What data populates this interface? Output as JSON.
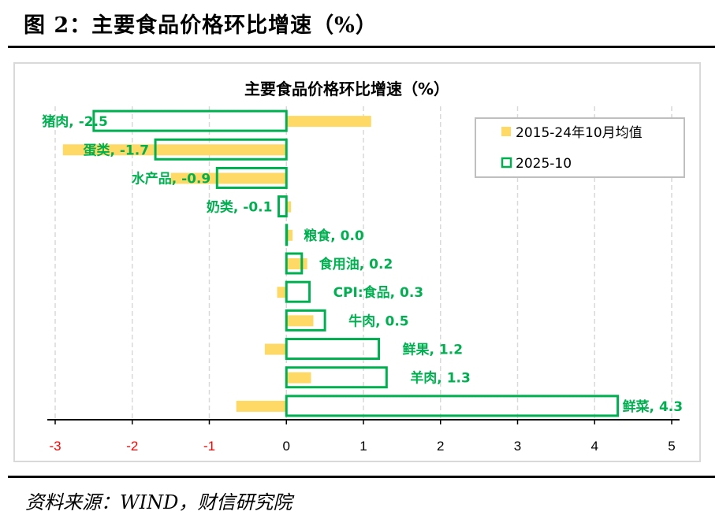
{
  "figure_title": "图 2：主要食品价格环比增速（%）",
  "source": "资料来源：WIND，财信研究院",
  "colors": {
    "avg": "#FFD966",
    "current": "#00B050",
    "label": "#00B050",
    "negative_tick": "#FF0000"
  },
  "chart_data": {
    "type": "bar",
    "orientation": "horizontal",
    "title": "主要食品价格环比增速（%）",
    "categories": [
      "猪肉",
      "蛋类",
      "水产品",
      "奶类",
      "粮食",
      "食用油",
      "CPI:食品",
      "牛肉",
      "鲜果",
      "羊肉",
      "鲜菜"
    ],
    "series": [
      {
        "name": "2015-24年10月均值",
        "style": "filled",
        "values": [
          1.1,
          -2.9,
          -1.5,
          0.06,
          0.08,
          0.27,
          -0.12,
          0.35,
          -0.28,
          0.32,
          -0.65
        ]
      },
      {
        "name": "2025-10",
        "style": "outline",
        "values": [
          -2.5,
          -1.7,
          -0.9,
          -0.1,
          0.0,
          0.2,
          0.3,
          0.5,
          1.2,
          1.3,
          4.3
        ]
      }
    ],
    "data_labels": [
      "猪肉, -2.5",
      "蛋类, -1.7",
      "水产品, -0.9",
      "奶类, -0.1",
      "粮食, 0.0",
      "食用油, 0.2",
      "CPI:食品, 0.3",
      "牛肉, 0.5",
      "鲜果, 1.2",
      "羊肉, 1.3",
      "鲜菜, 4.3"
    ],
    "xlim": [
      -3,
      5
    ],
    "xticks": [
      "-3",
      "-2",
      "-1",
      "0",
      "1",
      "2",
      "3",
      "4",
      "5"
    ],
    "grid": true,
    "legend": "top-right"
  }
}
